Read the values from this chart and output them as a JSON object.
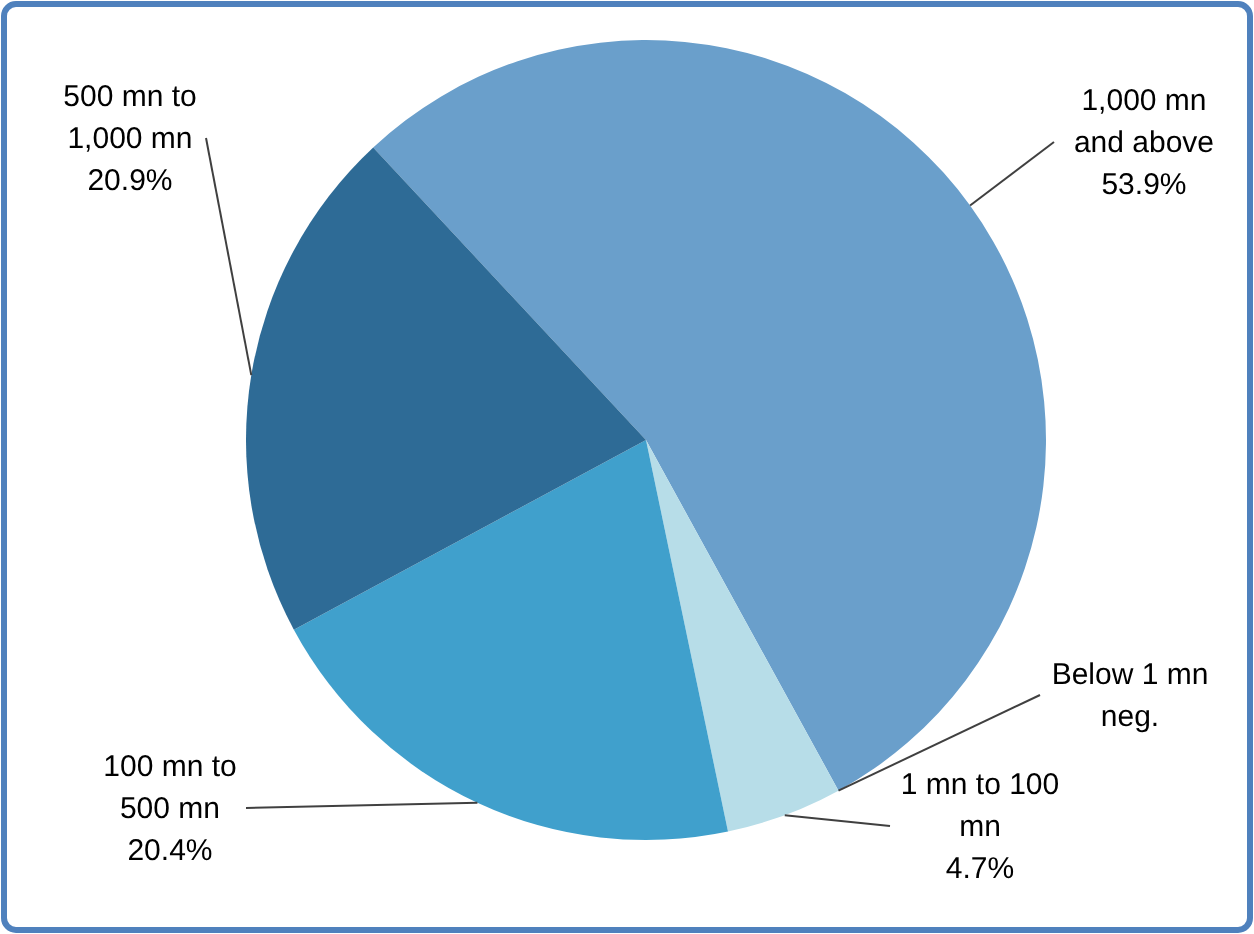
{
  "chart_data": {
    "type": "pie",
    "categories": [
      "1,000 mn and above",
      "Below 1 mn",
      "1 mn to 100 mn",
      "100 mn to 500 mn",
      "500 mn to 1,000 mn"
    ],
    "values": [
      53.9,
      0,
      4.7,
      20.4,
      20.9
    ],
    "value_labels": [
      "53.9%",
      "neg.",
      "4.7%",
      "20.4%",
      "20.9%"
    ],
    "colors": [
      "#6a9fcb",
      null,
      "#b7dde8",
      "#40a0cc",
      "#2e6b96"
    ]
  }
}
